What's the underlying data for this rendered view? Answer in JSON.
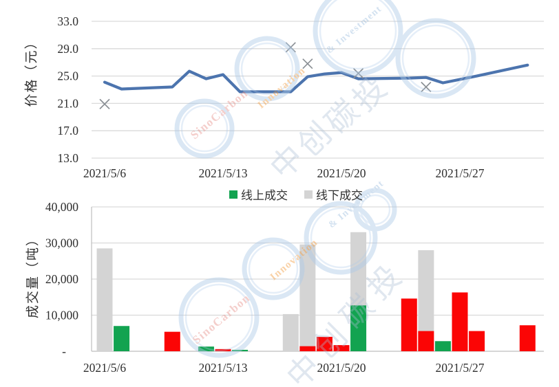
{
  "colors": {
    "line": "#4c74ae",
    "marker": "#8a8f94",
    "green": "#12a350",
    "red": "#fb0505",
    "gray_bar": "#d4d4d4",
    "grid": "#d9d9d9",
    "baseline": "#bdbdbd",
    "axis_text": "#2e2e2e",
    "wm_ring": "#aecbe8",
    "wm_pink": "#e8948e",
    "wm_orange": "#f29a3c",
    "wm_lightblue": "#9dbede",
    "wm_cn": "#aabdd4"
  },
  "watermark": {
    "brand_en_1": "SinoCarbon",
    "brand_en_2": "Innovation",
    "brand_en_3": "& Investment",
    "brand_cn": "中创碳投"
  },
  "chart_data": [
    {
      "type": "line",
      "ylabel": "价格（元）",
      "ylim": [
        13.0,
        33.0
      ],
      "grid": true,
      "yticks": [
        {
          "value": 33.0,
          "label": "33.0"
        },
        {
          "value": 29.0,
          "label": "29.0"
        },
        {
          "value": 25.0,
          "label": "25.0"
        },
        {
          "value": 21.0,
          "label": "21.0"
        },
        {
          "value": 17.0,
          "label": "17.0"
        },
        {
          "value": 13.0,
          "label": "13.0"
        }
      ],
      "xticks": [
        {
          "day": 0,
          "label": "2021/5/6"
        },
        {
          "day": 7,
          "label": "2021/5/13"
        },
        {
          "day": 14,
          "label": "2021/5/20"
        },
        {
          "day": 21,
          "label": "2021/5/27"
        }
      ],
      "series": [
        {
          "name": "price-line",
          "type": "line",
          "color_key": "line",
          "points": [
            {
              "date": "2021/5/6",
              "day": 0,
              "value": 24.1
            },
            {
              "date": "2021/5/7",
              "day": 1,
              "value": 23.1
            },
            {
              "date": "2021/5/10",
              "day": 4,
              "value": 23.4
            },
            {
              "date": "2021/5/11",
              "day": 5,
              "value": 25.7
            },
            {
              "date": "2021/5/12",
              "day": 6,
              "value": 24.6
            },
            {
              "date": "2021/5/13",
              "day": 7,
              "value": 25.2
            },
            {
              "date": "2021/5/14",
              "day": 8,
              "value": 22.7
            },
            {
              "date": "2021/5/17",
              "day": 11,
              "value": 22.7
            },
            {
              "date": "2021/5/18",
              "day": 12,
              "value": 24.9
            },
            {
              "date": "2021/5/19",
              "day": 13,
              "value": 25.3
            },
            {
              "date": "2021/5/20",
              "day": 14,
              "value": 25.5
            },
            {
              "date": "2021/5/21",
              "day": 15,
              "value": 24.6
            },
            {
              "date": "2021/5/24",
              "day": 18,
              "value": 24.7
            },
            {
              "date": "2021/5/25",
              "day": 19,
              "value": 24.8
            },
            {
              "date": "2021/5/26",
              "day": 20,
              "value": 24.0
            },
            {
              "date": "2021/5/27",
              "day": 21,
              "value": 24.5
            },
            {
              "date": "2021/5/28",
              "day": 22,
              "value": 25.0
            },
            {
              "date": "2021/5/31",
              "day": 25,
              "value": 26.6
            }
          ]
        },
        {
          "name": "price-x-markers",
          "type": "scatter_x",
          "color_key": "marker",
          "points": [
            {
              "date": "2021/5/6",
              "day": 0,
              "value": 20.9
            },
            {
              "date": "2021/5/17",
              "day": 11,
              "value": 29.2
            },
            {
              "date": "2021/5/18",
              "day": 12,
              "value": 26.8
            },
            {
              "date": "2021/5/21",
              "day": 15,
              "value": 25.4
            },
            {
              "date": "2021/5/25",
              "day": 19,
              "value": 23.4
            }
          ]
        }
      ]
    },
    {
      "type": "bar",
      "ylabel": "成交量（吨）",
      "ylim": [
        0,
        40000
      ],
      "grid": true,
      "yticks": [
        {
          "value": 40000,
          "label": "40,000"
        },
        {
          "value": 30000,
          "label": "30,000"
        },
        {
          "value": 20000,
          "label": "20,000"
        },
        {
          "value": 10000,
          "label": "10,000"
        },
        {
          "value": 0,
          "label": "-"
        }
      ],
      "xticks": [
        {
          "day": 0,
          "label": "2021/5/6"
        },
        {
          "day": 7,
          "label": "2021/5/13"
        },
        {
          "day": 14,
          "label": "2021/5/20"
        },
        {
          "day": 21,
          "label": "2021/5/27"
        }
      ],
      "legend": [
        {
          "label": "线上成交",
          "color_key": "green"
        },
        {
          "label": "线下成交",
          "color_key": "gray_bar"
        }
      ],
      "bars": [
        {
          "date": "2021/5/6",
          "day": 0,
          "value": 28500,
          "color_key": "gray_bar"
        },
        {
          "date": "2021/5/7",
          "day": 1,
          "value": 7000,
          "color_key": "green"
        },
        {
          "date": "2021/5/10",
          "day": 4,
          "value": 5400,
          "color_key": "red"
        },
        {
          "date": "2021/5/12",
          "day": 6,
          "value": 1300,
          "color_key": "green"
        },
        {
          "date": "2021/5/13",
          "day": 7,
          "value": 600,
          "color_key": "red"
        },
        {
          "date": "2021/5/14",
          "day": 8,
          "value": 400,
          "color_key": "green"
        },
        {
          "date": "2021/5/17",
          "day": 11,
          "value": 10300,
          "color_key": "gray_bar"
        },
        {
          "date": "2021/5/18",
          "day": 12,
          "value": 29600,
          "color_key": "gray_bar"
        },
        {
          "date": "2021/5/18",
          "day": 12,
          "value": 1400,
          "color_key": "red"
        },
        {
          "date": "2021/5/19",
          "day": 13,
          "value": 4000,
          "color_key": "red"
        },
        {
          "date": "2021/5/20",
          "day": 14,
          "value": 1700,
          "color_key": "red"
        },
        {
          "date": "2021/5/21",
          "day": 15,
          "value": 33000,
          "color_key": "gray_bar"
        },
        {
          "date": "2021/5/21",
          "day": 15,
          "value": 12700,
          "color_key": "green"
        },
        {
          "date": "2021/5/24",
          "day": 18,
          "value": 14600,
          "color_key": "red"
        },
        {
          "date": "2021/5/25",
          "day": 19,
          "value": 28000,
          "color_key": "gray_bar"
        },
        {
          "date": "2021/5/25",
          "day": 19,
          "value": 5600,
          "color_key": "red"
        },
        {
          "date": "2021/5/26",
          "day": 20,
          "value": 2800,
          "color_key": "green"
        },
        {
          "date": "2021/5/27",
          "day": 21,
          "value": 16300,
          "color_key": "red"
        },
        {
          "date": "2021/5/28",
          "day": 22,
          "value": 5600,
          "color_key": "red"
        },
        {
          "date": "2021/5/31",
          "day": 25,
          "value": 7200,
          "color_key": "red"
        }
      ]
    }
  ]
}
